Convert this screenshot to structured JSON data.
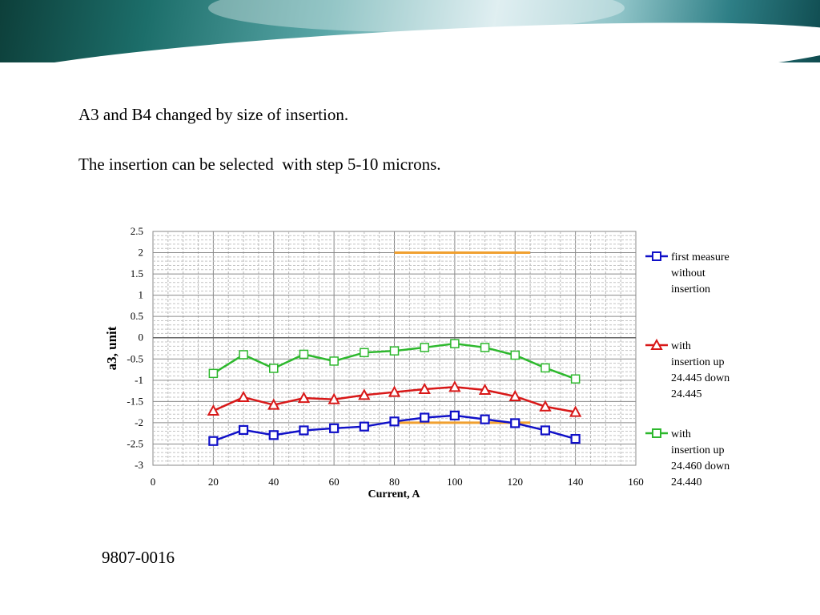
{
  "slide": {
    "line1": "A3 and B4 changed by size of insertion.",
    "line2": "The insertion can be selected  with step 5-10 microns.",
    "footer_code": "9807-0016"
  },
  "chart_data": {
    "type": "line",
    "xlabel": "Current, A",
    "ylabel": "a3, unit",
    "xlim": [
      0,
      160
    ],
    "ylim": [
      -3,
      2.5
    ],
    "x_ticks": [
      0,
      20,
      40,
      60,
      80,
      100,
      120,
      140,
      160
    ],
    "y_ticks": [
      2.5,
      2,
      1.5,
      1,
      0.5,
      0,
      -0.5,
      -1,
      -1.5,
      -2,
      -2.5,
      -3
    ],
    "grid": true,
    "legend_position": "right",
    "series": [
      {
        "name": "first measure without insertion",
        "legend_lines": [
          "first measure",
          "without",
          "insertion"
        ],
        "color": "#1010c8",
        "marker": "square",
        "x": [
          20,
          30,
          40,
          50,
          60,
          70,
          80,
          90,
          100,
          110,
          120,
          130,
          140
        ],
        "y": [
          -2.43,
          -2.17,
          -2.29,
          -2.18,
          -2.13,
          -2.09,
          -1.97,
          -1.88,
          -1.83,
          -1.92,
          -2.01,
          -2.18,
          -2.38
        ]
      },
      {
        "name": "with insertion up 24.445 down 24.445",
        "legend_lines": [
          "with",
          "insertion up",
          "24.445 down",
          "24.445"
        ],
        "color": "#d81818",
        "marker": "triangle",
        "x": [
          20,
          30,
          40,
          50,
          60,
          70,
          80,
          90,
          100,
          110,
          120,
          130,
          140
        ],
        "y": [
          -1.72,
          -1.4,
          -1.58,
          -1.42,
          -1.45,
          -1.35,
          -1.28,
          -1.21,
          -1.16,
          -1.23,
          -1.38,
          -1.62,
          -1.75
        ]
      },
      {
        "name": "with insertion up 24.460 down 24.440",
        "legend_lines": [
          "with",
          "insertion up",
          "24.460 down",
          "24.440"
        ],
        "color": "#2db82d",
        "marker": "square-open",
        "x": [
          20,
          30,
          40,
          50,
          60,
          70,
          80,
          90,
          100,
          110,
          120,
          130,
          140
        ],
        "y": [
          -0.84,
          -0.4,
          -0.72,
          -0.39,
          -0.55,
          -0.35,
          -0.31,
          -0.23,
          -0.14,
          -0.23,
          -0.41,
          -0.71,
          -0.97
        ]
      }
    ],
    "reference_lines": [
      {
        "color": "#f0a030",
        "x": [
          80,
          125
        ],
        "y": [
          2,
          2
        ]
      },
      {
        "color": "#f0a030",
        "x": [
          80,
          125
        ],
        "y": [
          -2,
          -2
        ]
      }
    ]
  }
}
